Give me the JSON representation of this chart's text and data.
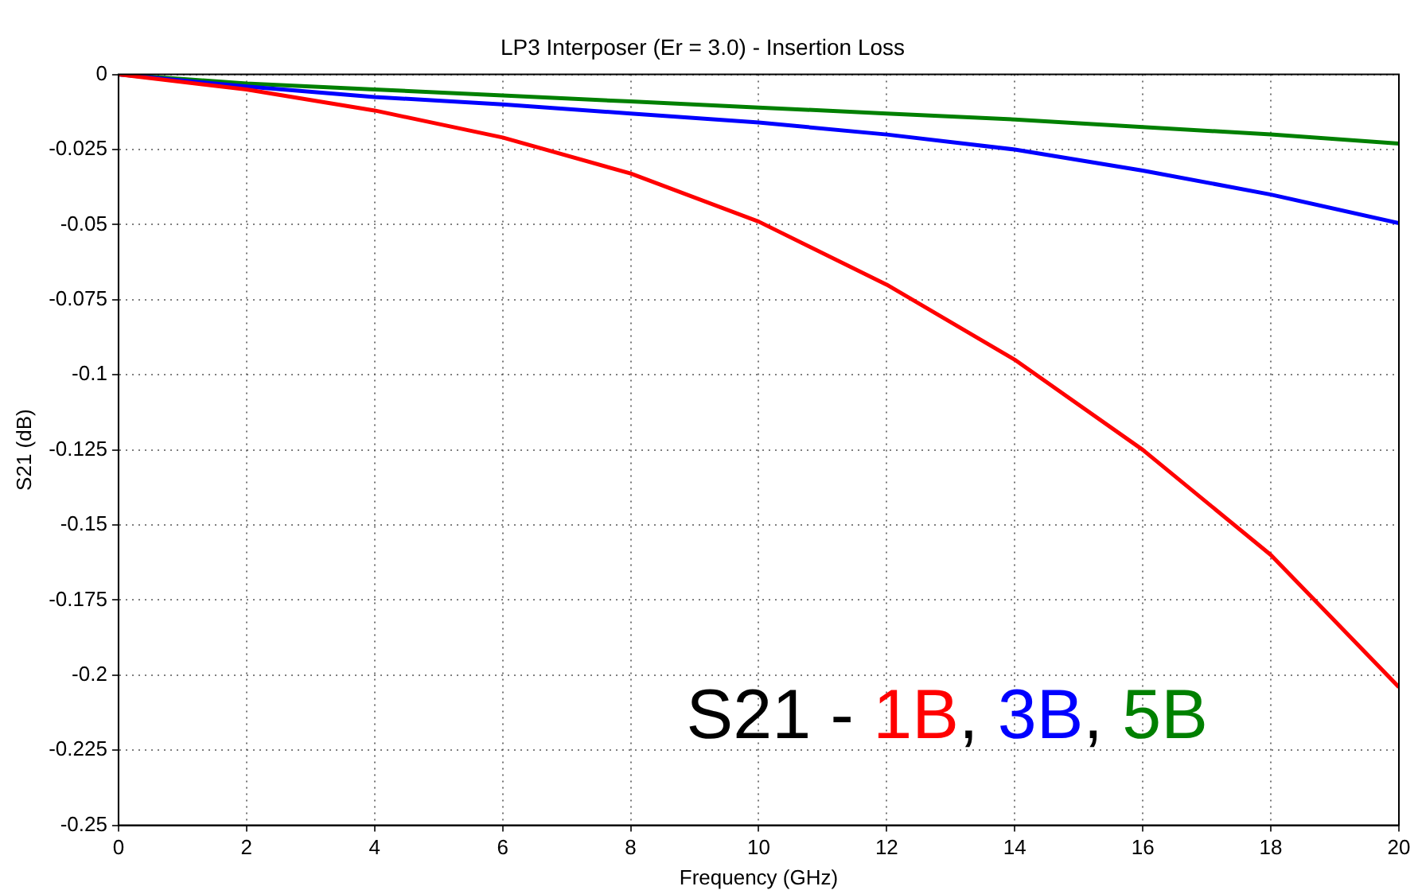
{
  "chart_data": {
    "type": "line",
    "title": "LP3 Interposer (Er = 3.0) - Insertion Loss",
    "xlabel": "Frequency (GHz)",
    "ylabel": "S21 (dB)",
    "annotations": [
      "S21 -",
      ",",
      ","
    ],
    "x": [
      0,
      2,
      4,
      6,
      8,
      10,
      12,
      14,
      16,
      18,
      20
    ],
    "series": [
      {
        "name": "1B",
        "color": "#ff0000",
        "values": [
          0,
          -0.005,
          -0.012,
          -0.021,
          -0.033,
          -0.049,
          -0.07,
          -0.095,
          -0.125,
          -0.16,
          -0.204
        ]
      },
      {
        "name": "3B",
        "color": "#0000ff",
        "values": [
          0,
          -0.004,
          -0.0075,
          -0.01,
          -0.013,
          -0.016,
          -0.02,
          -0.025,
          -0.032,
          -0.04,
          -0.0495
        ]
      },
      {
        "name": "5B",
        "color": "#008000",
        "values": [
          0,
          -0.003,
          -0.005,
          -0.007,
          -0.009,
          -0.011,
          -0.013,
          -0.015,
          -0.0175,
          -0.02,
          -0.023
        ]
      }
    ],
    "xlim": [
      0,
      20
    ],
    "xticks": [
      0,
      2,
      4,
      6,
      8,
      10,
      12,
      14,
      16,
      18,
      20
    ],
    "ylim": [
      -0.25,
      0
    ],
    "yticks": [
      -0.25,
      -0.225,
      -0.2,
      -0.175,
      -0.15,
      -0.125,
      -0.1,
      -0.075,
      -0.05,
      -0.025,
      0
    ],
    "grid": true,
    "legend": "bottom right",
    "marker": "none",
    "line_style": "solid"
  }
}
